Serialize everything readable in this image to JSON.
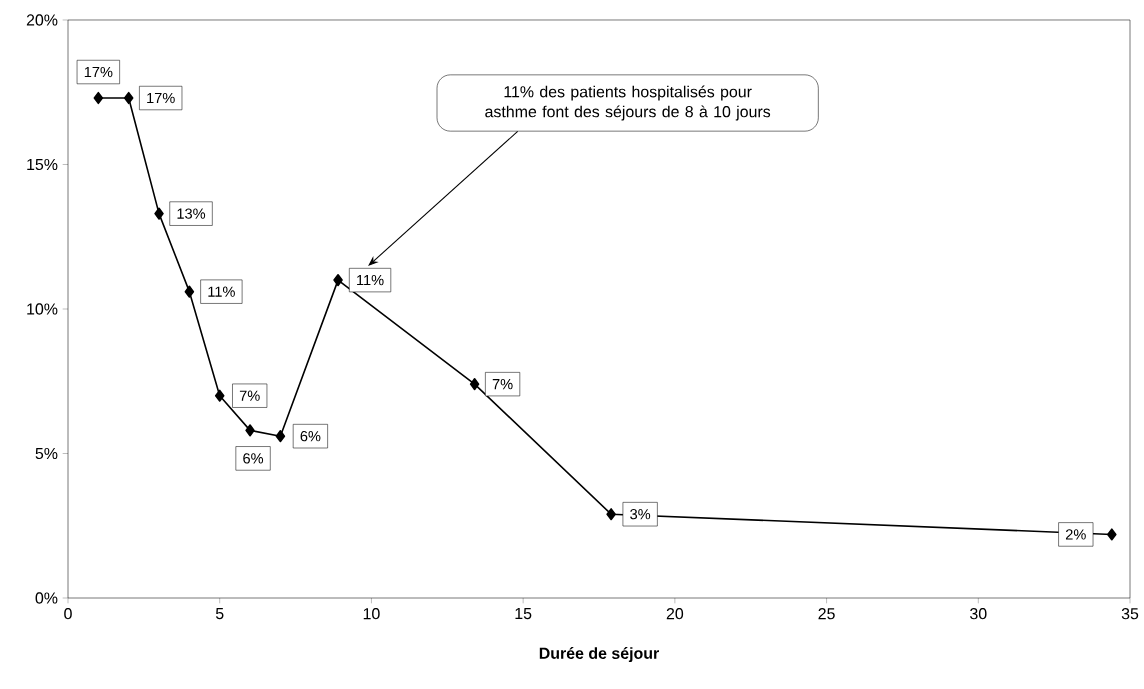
{
  "chart_data": {
    "type": "line",
    "xlabel": "Durée de séjour",
    "x": [
      1,
      2,
      3,
      4,
      5,
      6,
      7,
      8.9,
      13.4,
      17.9,
      34.4
    ],
    "values": [
      17.3,
      17.3,
      13.3,
      10.6,
      7.0,
      5.8,
      5.6,
      11.0,
      7.4,
      2.9,
      2.2
    ],
    "value_labels": [
      "17%",
      "17%",
      "13%",
      "11%",
      "7%",
      "6%",
      "6%",
      "11%",
      "7%",
      "3%",
      "2%"
    ],
    "color": "#000000",
    "marker": "diamond",
    "line_style": "solid",
    "xlim": [
      0,
      35
    ],
    "ylim": [
      0,
      20
    ],
    "xticks": [
      0,
      5,
      10,
      15,
      20,
      25,
      30,
      35
    ],
    "yticks": [
      {
        "value": 0,
        "label": "0%"
      },
      {
        "value": 5,
        "label": "5%"
      },
      {
        "value": 10,
        "label": "10%"
      },
      {
        "value": 15,
        "label": "15%"
      },
      {
        "value": 20,
        "label": "20%"
      }
    ],
    "annotations": [
      "11% des patients hospitalisés pour asthme font des séjours de 8 à 10 jours"
    ],
    "grid": false
  }
}
